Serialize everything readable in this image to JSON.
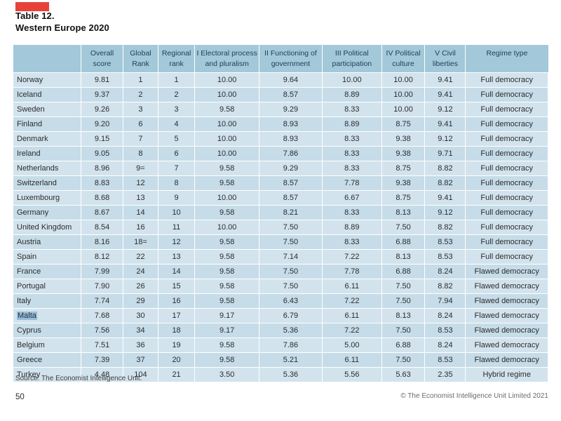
{
  "brand": {
    "accent_red": "#e8413a",
    "header_blue": "#a3c8da",
    "row_light": "#d2e3ed",
    "row_dark": "#c6dce8",
    "highlight_blue": "#96bedd"
  },
  "title": {
    "line1": "Table 12.",
    "line2": "Western Europe 2020"
  },
  "table": {
    "columns": [
      {
        "key": "country",
        "label": ""
      },
      {
        "key": "overall-score",
        "label": "Overall\nscore"
      },
      {
        "key": "global-rank",
        "label": "Global\nRank"
      },
      {
        "key": "regional-rank",
        "label": "Regional\nrank"
      },
      {
        "key": "electoral-process",
        "label": "I Electoral process\nand pluralism"
      },
      {
        "key": "functioning-government",
        "label": "II Functioning of\ngovernment"
      },
      {
        "key": "political-participation",
        "label": "III Political\nparticipation"
      },
      {
        "key": "political-culture",
        "label": "IV Political\nculture"
      },
      {
        "key": "civil-liberties",
        "label": "V Civil\nliberties"
      },
      {
        "key": "regime-type",
        "label": "Regime type"
      }
    ],
    "rows": [
      {
        "cells": [
          "Norway",
          "9.81",
          "1",
          "1",
          "10.00",
          "9.64",
          "10.00",
          "10.00",
          "9.41",
          "Full democracy"
        ]
      },
      {
        "cells": [
          "Iceland",
          "9.37",
          "2",
          "2",
          "10.00",
          "8.57",
          "8.89",
          "10.00",
          "9.41",
          "Full democracy"
        ]
      },
      {
        "cells": [
          "Sweden",
          "9.26",
          "3",
          "3",
          "9.58",
          "9.29",
          "8.33",
          "10.00",
          "9.12",
          "Full democracy"
        ]
      },
      {
        "cells": [
          "Finland",
          "9.20",
          "6",
          "4",
          "10.00",
          "8.93",
          "8.89",
          "8.75",
          "9.41",
          "Full democracy"
        ]
      },
      {
        "cells": [
          "Denmark",
          "9.15",
          "7",
          "5",
          "10.00",
          "8.93",
          "8.33",
          "9.38",
          "9.12",
          "Full democracy"
        ]
      },
      {
        "cells": [
          "Ireland",
          "9.05",
          "8",
          "6",
          "10.00",
          "7.86",
          "8.33",
          "9.38",
          "9.71",
          "Full democracy"
        ]
      },
      {
        "cells": [
          "Netherlands",
          "8.96",
          "9=",
          "7",
          "9.58",
          "9.29",
          "8.33",
          "8.75",
          "8.82",
          "Full democracy"
        ]
      },
      {
        "cells": [
          "Switzerland",
          "8.83",
          "12",
          "8",
          "9.58",
          "8.57",
          "7.78",
          "9.38",
          "8.82",
          "Full democracy"
        ]
      },
      {
        "cells": [
          "Luxembourg",
          "8.68",
          "13",
          "9",
          "10.00",
          "8.57",
          "6.67",
          "8.75",
          "9.41",
          "Full democracy"
        ]
      },
      {
        "cells": [
          "Germany",
          "8.67",
          "14",
          "10",
          "9.58",
          "8.21",
          "8.33",
          "8.13",
          "9.12",
          "Full democracy"
        ]
      },
      {
        "cells": [
          "United Kingdom",
          "8.54",
          "16",
          "11",
          "10.00",
          "7.50",
          "8.89",
          "7.50",
          "8.82",
          "Full democracy"
        ]
      },
      {
        "cells": [
          "Austria",
          "8.16",
          "18=",
          "12",
          "9.58",
          "7.50",
          "8.33",
          "6.88",
          "8.53",
          "Full democracy"
        ]
      },
      {
        "cells": [
          "Spain",
          "8.12",
          "22",
          "13",
          "9.58",
          "7.14",
          "7.22",
          "8.13",
          "8.53",
          "Full democracy"
        ]
      },
      {
        "cells": [
          "France",
          "7.99",
          "24",
          "14",
          "9.58",
          "7.50",
          "7.78",
          "6.88",
          "8.24",
          "Flawed democracy"
        ]
      },
      {
        "cells": [
          "Portugal",
          "7.90",
          "26",
          "15",
          "9.58",
          "7.50",
          "6.11",
          "7.50",
          "8.82",
          "Flawed democracy"
        ]
      },
      {
        "cells": [
          "Italy",
          "7.74",
          "29",
          "16",
          "9.58",
          "6.43",
          "7.22",
          "7.50",
          "7.94",
          "Flawed democracy"
        ]
      },
      {
        "cells": [
          "Malta",
          "7.68",
          "30",
          "17",
          "9.17",
          "6.79",
          "6.11",
          "8.13",
          "8.24",
          "Flawed democracy"
        ],
        "highlighted": true
      },
      {
        "cells": [
          "Cyprus",
          "7.56",
          "34",
          "18",
          "9.17",
          "5.36",
          "7.22",
          "7.50",
          "8.53",
          "Flawed democracy"
        ]
      },
      {
        "cells": [
          "Belgium",
          "7.51",
          "36",
          "19",
          "9.58",
          "7.86",
          "5.00",
          "6.88",
          "8.24",
          "Flawed democracy"
        ]
      },
      {
        "cells": [
          "Greece",
          "7.39",
          "37",
          "20",
          "9.58",
          "5.21",
          "6.11",
          "7.50",
          "8.53",
          "Flawed democracy"
        ]
      },
      {
        "cells": [
          "Turkey",
          "4.48",
          "104",
          "21",
          "3.50",
          "5.36",
          "5.56",
          "5.63",
          "2.35",
          "Hybrid regime"
        ]
      }
    ]
  },
  "footer": {
    "source": "Source: The Economist Intelligence Unit.",
    "page_number": "50",
    "copyright": "© The Economist Intelligence Unit Limited 2021"
  }
}
